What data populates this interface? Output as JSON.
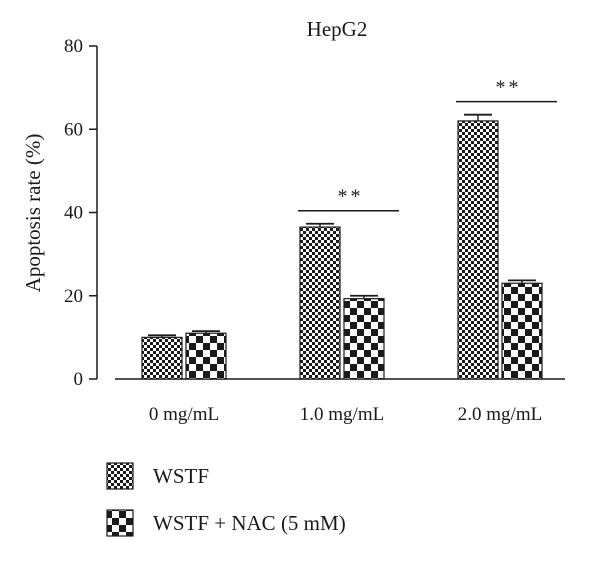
{
  "chart_data": {
    "type": "bar",
    "title": "HepG2",
    "xlabel": "",
    "ylabel": "Apoptosis rate (%)",
    "ylim": [
      0,
      80
    ],
    "yticks": [
      "0",
      "20",
      "40",
      "60",
      "80"
    ],
    "categories": [
      "0 mg/mL",
      "1.0 mg/mL",
      "2.0 mg/mL"
    ],
    "series": [
      {
        "name": "WSTF",
        "pattern": "fine-checker",
        "values": [
          10,
          36.5,
          62
        ],
        "errors": [
          0.5,
          0.8,
          1.5
        ]
      },
      {
        "name": "WSTF + NAC (5 mM)",
        "pattern": "coarse-checker",
        "values": [
          11,
          19.3,
          23
        ],
        "errors": [
          0.5,
          0.7,
          0.7
        ]
      }
    ],
    "significance": [
      {
        "category_index": 1,
        "label": "**"
      },
      {
        "category_index": 2,
        "label": "**"
      }
    ],
    "grid": false,
    "legend_position": "bottom-left",
    "colors": {
      "ink": "#1a1a1a",
      "background": "#ffffff"
    }
  }
}
